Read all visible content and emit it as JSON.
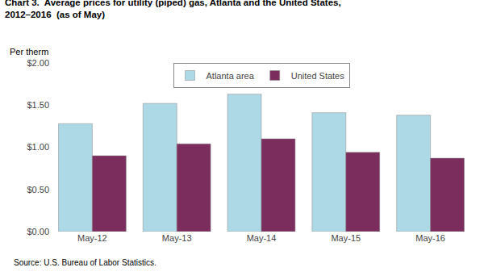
{
  "chart_data": {
    "type": "bar",
    "title": "Chart 3.  Average prices for utility (piped) gas, Atlanta and the United States,",
    "subtitle": "2012–2016  (as of May)",
    "ylabel": "Per therm",
    "annotations": [
      "Source: U.S. Bureau of Labor Statistics."
    ],
    "categories": [
      "May-12",
      "May-13",
      "May-14",
      "May-15",
      "May-16"
    ],
    "series": [
      {
        "name": "Atlanta area",
        "color": "#ADD8E6",
        "values": [
          1.28,
          1.52,
          1.63,
          1.41,
          1.38
        ]
      },
      {
        "name": "United States",
        "color": "#7B2D5E",
        "values": [
          0.9,
          1.04,
          1.1,
          0.94,
          0.87
        ]
      }
    ],
    "ylim": [
      0.0,
      2.0
    ],
    "yticks": [
      {
        "value": 0.0,
        "label": "$0.00"
      },
      {
        "value": 0.5,
        "label": "$0.50"
      },
      {
        "value": 1.0,
        "label": "$1.00"
      },
      {
        "value": 1.5,
        "label": "$1.50"
      },
      {
        "value": 2.0,
        "label": "$2.00"
      }
    ],
    "grid": false,
    "legend": "upper center"
  }
}
